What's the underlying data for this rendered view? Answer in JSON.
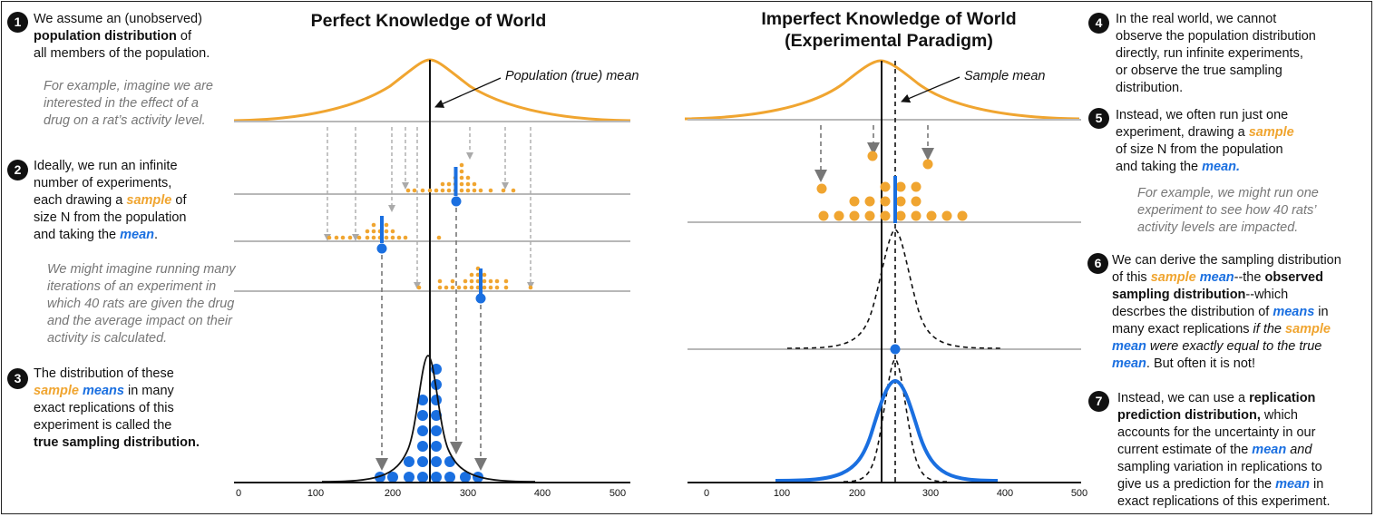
{
  "left_panel": {
    "title": "Perfect Knowledge of World",
    "mean_label": "Population (true) mean"
  },
  "right_panel": {
    "title_line1": "Imperfect Knowledge of World",
    "title_line2": "(Experimental Paradigm)",
    "mean_label": "Sample mean"
  },
  "axis_ticks": [
    "0",
    "100",
    "200",
    "300",
    "400",
    "500"
  ],
  "steps": [
    {
      "num": "1",
      "l1a": "We assume an (unobserved)",
      "l2a": "population distribution",
      "l2b": " of",
      "l3": "all members of the population."
    },
    {
      "num": "2",
      "l1": "Ideally, we run an infinite",
      "l2": "number of experiments,",
      "l3a": "each drawing a ",
      "l3b": "sample",
      "l3c": " of",
      "l4": "size N from the population",
      "l5a": "and taking the ",
      "l5b": "mean",
      "l5c": "."
    },
    {
      "num": "3",
      "l1": "The distribution of these",
      "l2a": "sample",
      "l2b": "means",
      "l2c": " in many",
      "l3": "exact replications of this",
      "l4": "experiment is called the",
      "l5": "true sampling distribution."
    },
    {
      "num": "4",
      "l1": "In the real world, we cannot",
      "l2": "observe the population distribution",
      "l3": "directly, run infinite experiments,",
      "l4": "or observe the true sampling",
      "l5": "distribution."
    },
    {
      "num": "5",
      "l1": "Instead, we often run just one",
      "l2a": "experiment, drawing a ",
      "l2b": "sample",
      "l3": "of size N from the population",
      "l4a": "and taking the ",
      "l4b": "mean."
    },
    {
      "num": "6",
      "l1": "We can derive the sampling distribution",
      "l2a": "of this ",
      "l2b": "sample",
      "l2c": "mean",
      "l2d": "--the ",
      "l2e": "observed",
      "l3a": "sampling distribution",
      "l3b": "--which",
      "l4a": "descrbes the distribution of ",
      "l4b": "means",
      "l4c": " in",
      "l5a": "many exact replications ",
      "l5b": "if the ",
      "l5c": "sample",
      "l6a": "mean",
      "l6b": " were exactly equal to the true",
      "l7a": "mean",
      "l7b": ". But often it is not!"
    },
    {
      "num": "7",
      "l1a": "Instead, we can use a ",
      "l1b": "replication",
      "l2a": "prediction distribution,",
      "l2b": " which",
      "l3": "accounts for the uncertainty in our",
      "l4a": "current estimate of the ",
      "l4b": "mean",
      "l4c": "and",
      "l5": "sampling variation in replications to",
      "l6a": "give us a prediction for the ",
      "l6b": "mean",
      "l6c": " in",
      "l7": "exact replications of this experiment."
    }
  ],
  "notes": {
    "n1": [
      "For example, imagine we are",
      "interested in the effect of a",
      "drug on a rat’s activity level."
    ],
    "n2": [
      "We might imagine running many",
      "iterations of an experiment in",
      "which 40 rats are given the drug",
      "and the average impact on their",
      "activity is calculated."
    ],
    "n3": [
      "For example, we might run one",
      "experiment to see how 40 rats’",
      "activity levels are impacted."
    ]
  },
  "colors": {
    "population": "#f0a530",
    "mean": "#1a6fe0",
    "gray_line": "#b8b8b8",
    "text": "#111111",
    "note": "#777777"
  }
}
